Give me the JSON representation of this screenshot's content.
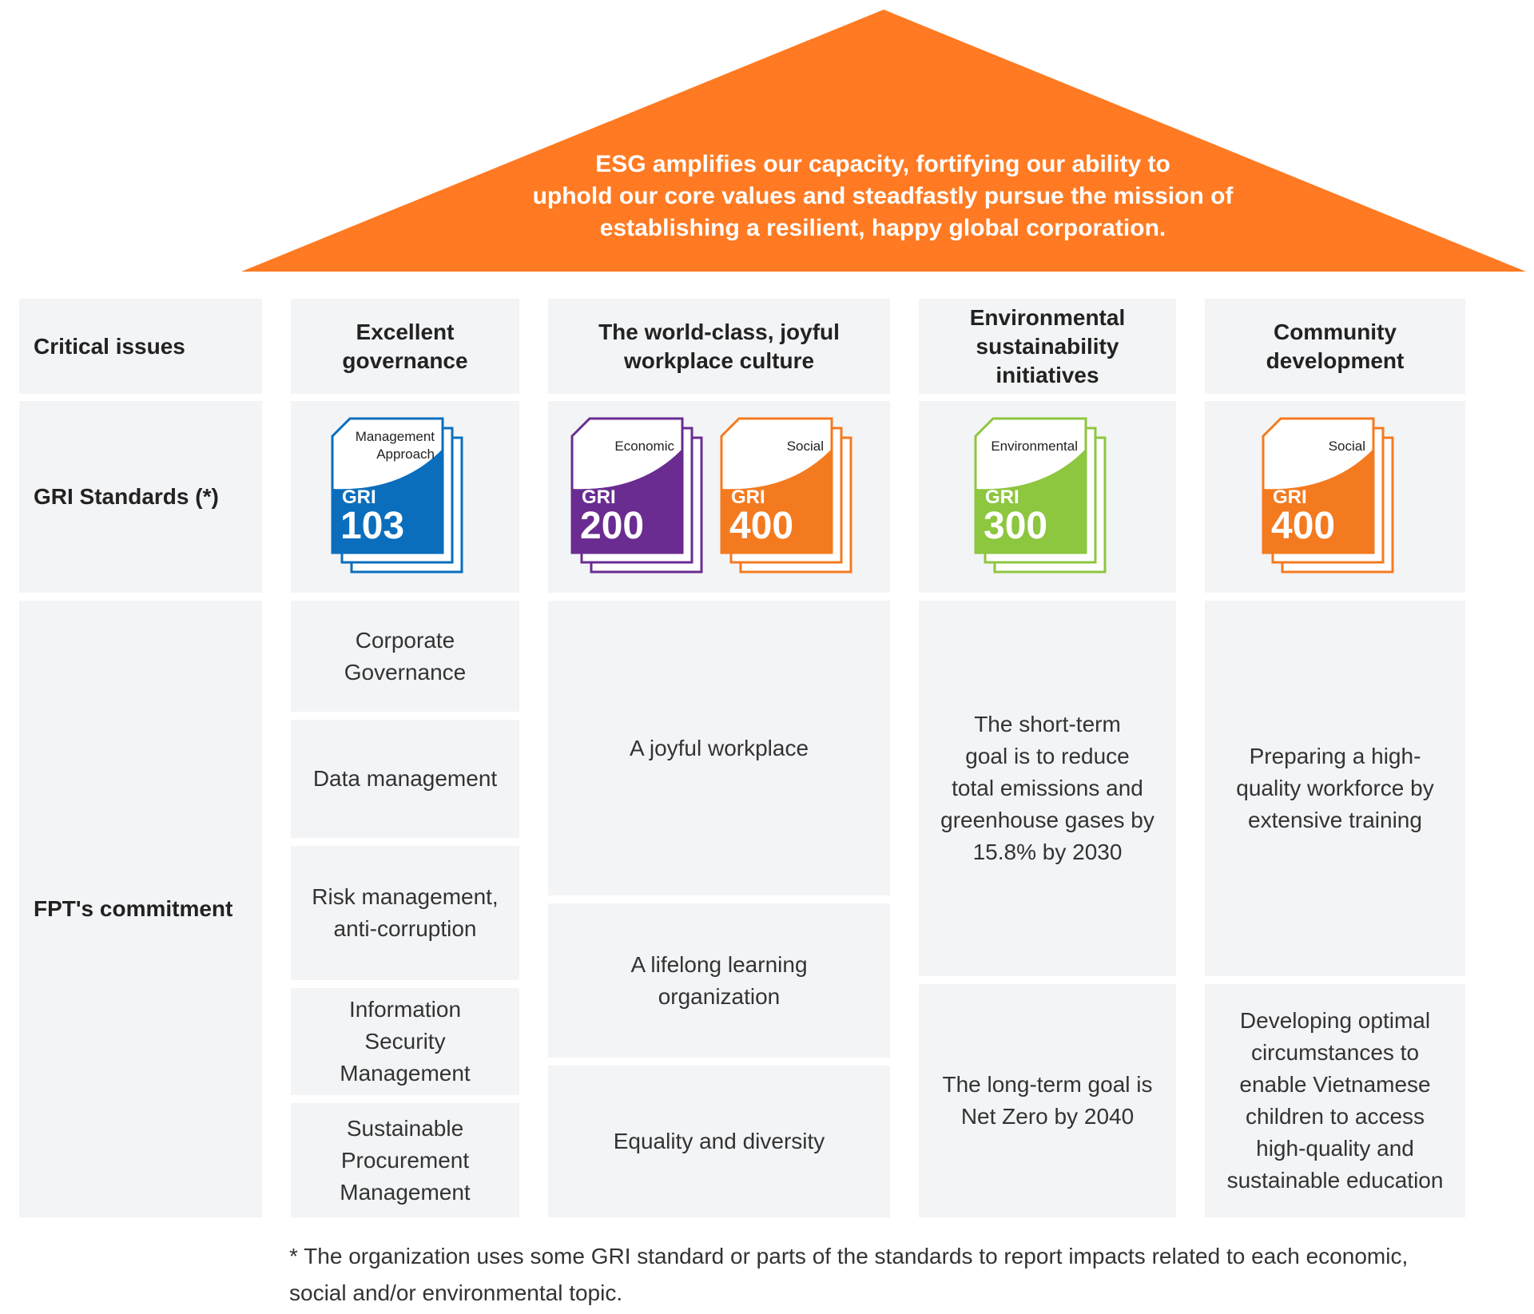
{
  "roof": {
    "color": "#FF7A22",
    "lines": [
      "ESG amplifies our capacity, fortifying our ability to",
      "uphold our core values and steadfastly pursue the mission of",
      "establishing a resilient, happy global corporation."
    ]
  },
  "row_labels": {
    "critical_issues": "Critical issues",
    "gri_standards": "GRI Standards (*)",
    "commitment": "FPT's commitment"
  },
  "columns": [
    {
      "heading": [
        "Excellent",
        "governance"
      ],
      "commitments": [
        [
          "Corporate",
          "Governance"
        ],
        [
          "Data management"
        ],
        [
          "Risk management,",
          "anti-corruption"
        ],
        [
          "Information",
          "Security",
          "Management"
        ],
        [
          "Sustainable",
          "Procurement",
          "Management"
        ]
      ]
    },
    {
      "heading": [
        "The world-class, joyful",
        "workplace culture"
      ],
      "commitments": [
        [
          "A joyful workplace"
        ],
        [
          "A lifelong learning",
          "organization"
        ],
        [
          "Equality and diversity"
        ]
      ]
    },
    {
      "heading": [
        "Environmental",
        "sustainability",
        "initiatives"
      ],
      "commitments": [
        [
          "The short-term",
          "goal is to reduce",
          "total emissions and",
          "greenhouse gases by",
          "15.8% by 2030"
        ],
        [
          "The long-term goal is",
          "Net Zero by 2040"
        ]
      ]
    },
    {
      "heading": [
        "Community",
        "development"
      ],
      "commitments": [
        [
          "Preparing a high-",
          "quality workforce by",
          "extensive training"
        ],
        [
          "Developing optimal",
          "circumstances to",
          "enable Vietnamese",
          "children to access",
          "high-quality and",
          "sustainable education"
        ]
      ]
    }
  ],
  "gri_icons": [
    {
      "label_lines": [
        "Management",
        "Approach"
      ],
      "gri": "GRI",
      "number": "103",
      "color": "#0A6EBD",
      "icon": "gri-103-document-icon"
    },
    {
      "label_lines": [
        "Economic"
      ],
      "gri": "GRI",
      "number": "200",
      "color": "#6A2C91",
      "icon": "gri-200-document-icon"
    },
    {
      "label_lines": [
        "Social"
      ],
      "gri": "GRI",
      "number": "400",
      "color": "#F47A20",
      "icon": "gri-400-document-icon"
    },
    {
      "label_lines": [
        "Environmental"
      ],
      "gri": "GRI",
      "number": "300",
      "color": "#8DC63F",
      "icon": "gri-300-document-icon"
    },
    {
      "label_lines": [
        "Social"
      ],
      "gri": "GRI",
      "number": "400",
      "color": "#F47A20",
      "icon": "gri-400-document-icon"
    }
  ],
  "footnote": [
    "*  The organization uses some GRI standard or parts of the standards to report impacts related to each economic,",
    "social and/or environmental topic."
  ]
}
